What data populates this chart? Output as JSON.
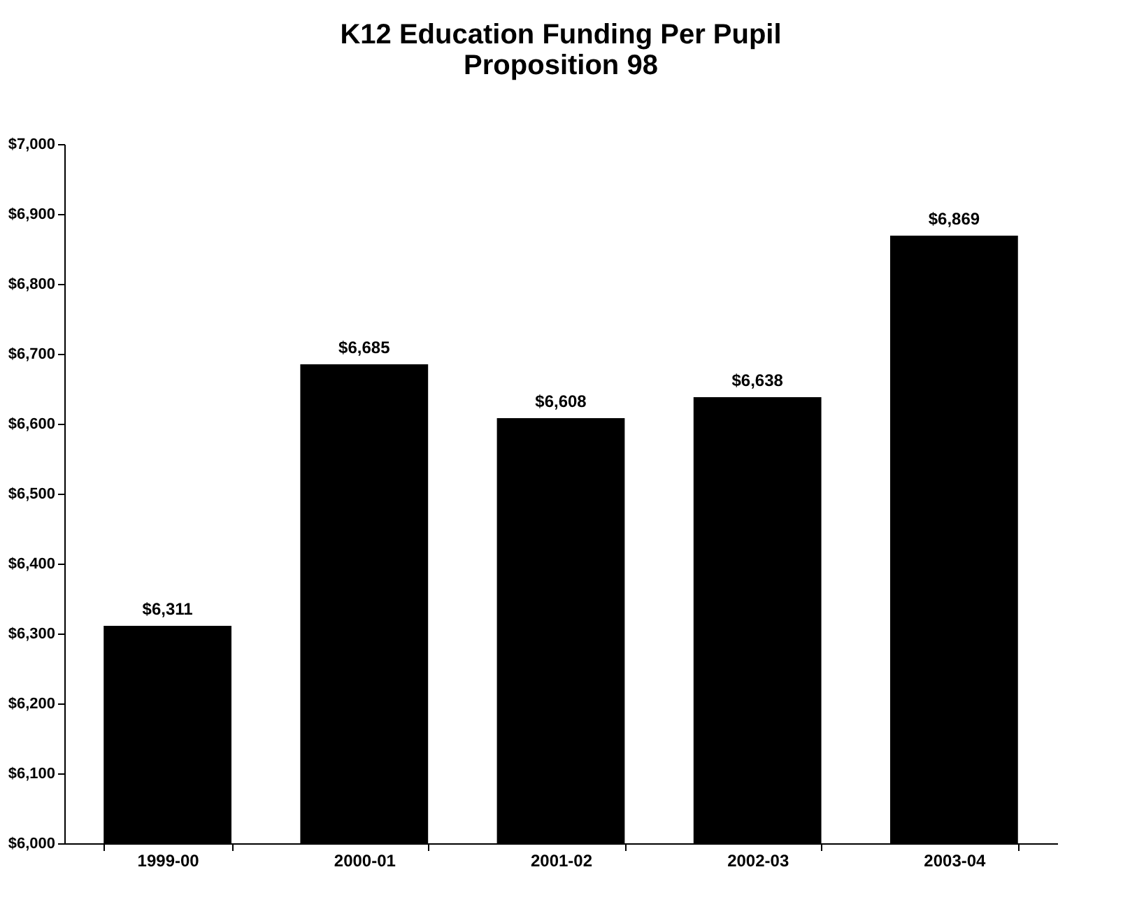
{
  "chart_data": {
    "type": "bar",
    "title": "K12 Education Funding Per Pupil",
    "subtitle": "Proposition 98",
    "categories": [
      "1999-00",
      "2000-01",
      "2001-02",
      "2002-03",
      "2003-04"
    ],
    "values": [
      6311,
      6685,
      6608,
      6638,
      6869
    ],
    "value_labels": [
      "$6,311",
      "$6,685",
      "$6,608",
      "$6,638",
      "$6,869"
    ],
    "color": "#000000",
    "ylim": [
      6000,
      7000
    ],
    "yticks": [
      {
        "value": 6000,
        "label": "$6,000"
      },
      {
        "value": 6100,
        "label": "$6,100"
      },
      {
        "value": 6200,
        "label": "$6,200"
      },
      {
        "value": 6300,
        "label": "$6,300"
      },
      {
        "value": 6400,
        "label": "$6,400"
      },
      {
        "value": 6500,
        "label": "$6,500"
      },
      {
        "value": 6600,
        "label": "$6,600"
      },
      {
        "value": 6700,
        "label": "$6,700"
      },
      {
        "value": 6800,
        "label": "$6,800"
      },
      {
        "value": 6900,
        "label": "$6,900"
      },
      {
        "value": 7000,
        "label": "$7,000"
      }
    ],
    "grid": false
  }
}
